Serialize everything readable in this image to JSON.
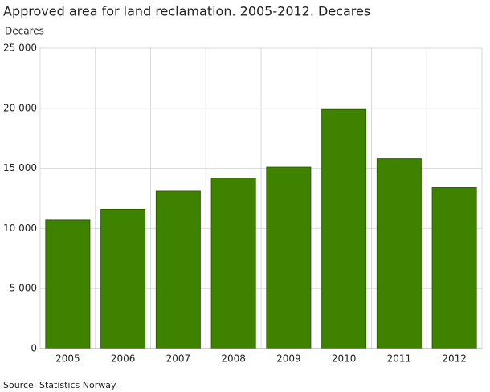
{
  "chart_data": {
    "type": "bar",
    "title": "Approved area for land reclamation. 2005-2012. Decares",
    "y_axis_label": "Decares",
    "source": "Source: Statistics Norway.",
    "categories": [
      "2005",
      "2006",
      "2007",
      "2008",
      "2009",
      "2010",
      "2011",
      "2012"
    ],
    "values": [
      10700,
      11600,
      13100,
      14200,
      15100,
      19900,
      15800,
      13400
    ],
    "color": "#3e8200",
    "border_color": "#2e5f00",
    "ylim": [
      0,
      25000
    ],
    "yticks": [
      0,
      {
        "value": 5000,
        "label": "5 000"
      },
      {
        "value": 10000,
        "label": "10 000"
      },
      {
        "value": 15000,
        "label": "15 000"
      },
      {
        "value": 20000,
        "label": "20 000"
      },
      {
        "value": 25000,
        "label": "25 000"
      }
    ],
    "grid": true
  }
}
